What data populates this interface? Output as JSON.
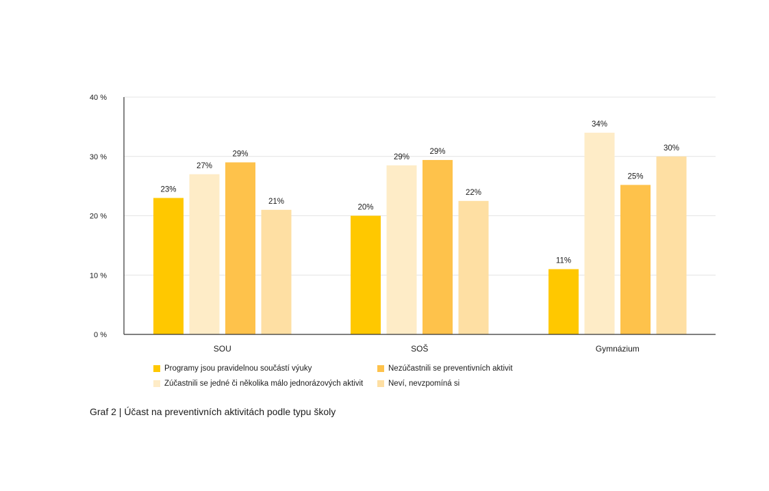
{
  "chart_data": {
    "type": "bar",
    "categories": [
      "SOU",
      "SOŠ",
      "Gymnázium"
    ],
    "series": [
      {
        "name": "Programy jsou pravidelnou součástí výuky",
        "color": "#ffc800",
        "values": [
          23,
          20,
          11
        ],
        "labels": [
          "23%",
          "20%",
          "11%"
        ]
      },
      {
        "name": "Zúčastnili se jedné či několika málo jednorázových aktivit",
        "color": "#feecc7",
        "values": [
          27,
          28.5,
          34
        ],
        "labels": [
          "27%",
          "29%",
          "34%"
        ]
      },
      {
        "name": "Nezúčastnili se preventivních aktivit",
        "color": "#fec24b",
        "values": [
          29,
          29.4,
          25.2
        ],
        "labels": [
          "29%",
          "29%",
          "25%"
        ]
      },
      {
        "name": "Neví, nevzpomíná si",
        "color": "#fedfa3",
        "values": [
          21,
          22.5,
          30
        ],
        "labels": [
          "21%",
          "22%",
          "30%"
        ]
      }
    ],
    "yticks": [
      "0 %",
      "10 %",
      "20 %",
      "30 %",
      "40 %"
    ],
    "ylim": [
      0,
      40
    ],
    "grid": true,
    "legend_position": "bottom",
    "legend_order": [
      0,
      2,
      1,
      3
    ]
  },
  "caption": "Graf 2 | Účast na preventivních aktivitách podle typu školy"
}
